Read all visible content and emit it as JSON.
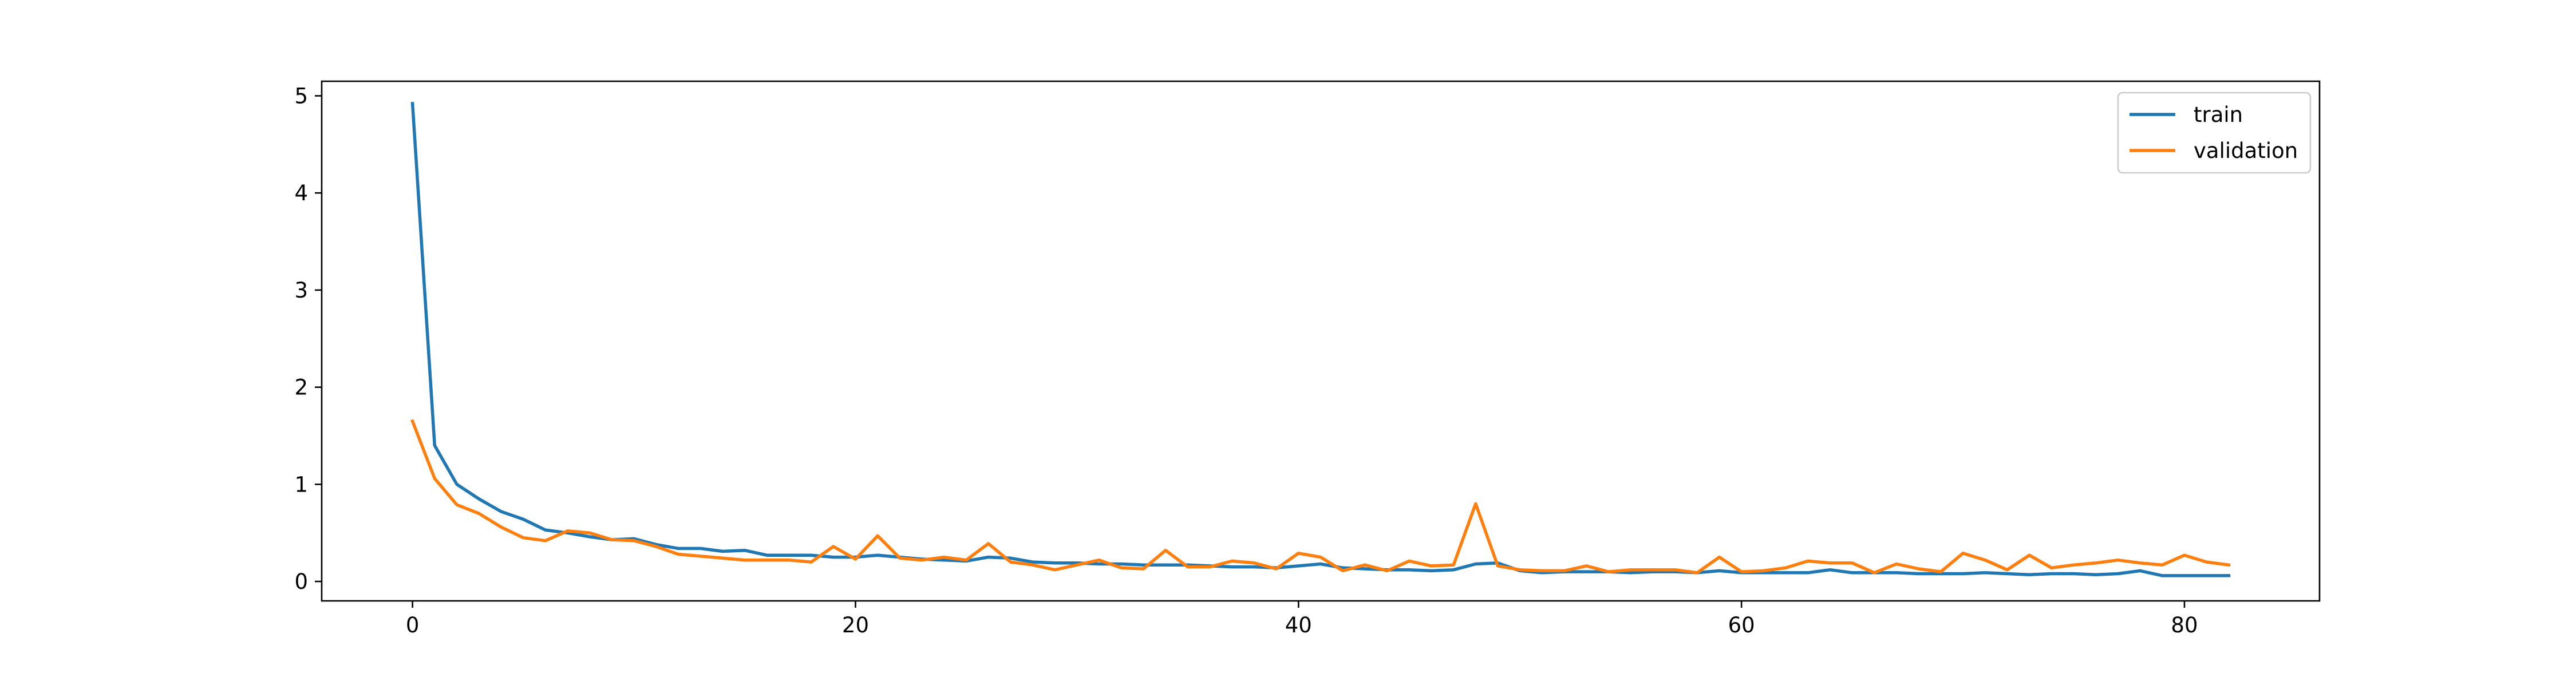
{
  "chart_data": {
    "type": "line",
    "title": "",
    "xlabel": "",
    "ylabel": "",
    "xlim": [
      -4.1,
      86.1
    ],
    "ylim": [
      -0.2,
      5.15
    ],
    "xticks": [
      0,
      20,
      40,
      60,
      80
    ],
    "yticks": [
      0,
      1,
      2,
      3,
      4,
      5
    ],
    "grid": false,
    "legend_position": "top-right",
    "x": [
      0,
      1,
      2,
      3,
      4,
      5,
      6,
      7,
      8,
      9,
      10,
      11,
      12,
      13,
      14,
      15,
      16,
      17,
      18,
      19,
      20,
      21,
      22,
      23,
      24,
      25,
      26,
      27,
      28,
      29,
      30,
      31,
      32,
      33,
      34,
      35,
      36,
      37,
      38,
      39,
      40,
      41,
      42,
      43,
      44,
      45,
      46,
      47,
      48,
      49,
      50,
      51,
      52,
      53,
      54,
      55,
      56,
      57,
      58,
      59,
      60,
      61,
      62,
      63,
      64,
      65,
      66,
      67,
      68,
      69,
      70,
      71,
      72,
      73,
      74,
      75,
      76,
      77,
      78,
      79,
      80,
      81,
      82
    ],
    "series": [
      {
        "name": "train",
        "color": "#1f77b4",
        "values": [
          4.92,
          1.4,
          1.0,
          0.85,
          0.72,
          0.64,
          0.53,
          0.5,
          0.46,
          0.43,
          0.44,
          0.38,
          0.34,
          0.34,
          0.31,
          0.32,
          0.27,
          0.27,
          0.27,
          0.25,
          0.25,
          0.27,
          0.25,
          0.23,
          0.22,
          0.21,
          0.25,
          0.24,
          0.2,
          0.19,
          0.19,
          0.18,
          0.18,
          0.17,
          0.17,
          0.17,
          0.16,
          0.15,
          0.15,
          0.14,
          0.16,
          0.18,
          0.14,
          0.13,
          0.12,
          0.12,
          0.11,
          0.12,
          0.18,
          0.19,
          0.11,
          0.09,
          0.1,
          0.1,
          0.1,
          0.09,
          0.1,
          0.1,
          0.09,
          0.11,
          0.09,
          0.09,
          0.09,
          0.09,
          0.12,
          0.09,
          0.09,
          0.09,
          0.08,
          0.08,
          0.08,
          0.09,
          0.08,
          0.07,
          0.08,
          0.08,
          0.07,
          0.08,
          0.11,
          0.06,
          0.06,
          0.06,
          0.06
        ]
      },
      {
        "name": "validation",
        "color": "#ff7f0e",
        "values": [
          1.65,
          1.06,
          0.79,
          0.7,
          0.56,
          0.45,
          0.42,
          0.52,
          0.5,
          0.43,
          0.42,
          0.36,
          0.28,
          0.26,
          0.24,
          0.22,
          0.22,
          0.22,
          0.2,
          0.36,
          0.23,
          0.47,
          0.24,
          0.22,
          0.25,
          0.22,
          0.39,
          0.2,
          0.17,
          0.12,
          0.17,
          0.22,
          0.14,
          0.13,
          0.32,
          0.15,
          0.15,
          0.21,
          0.19,
          0.13,
          0.29,
          0.25,
          0.11,
          0.17,
          0.11,
          0.21,
          0.16,
          0.17,
          0.8,
          0.16,
          0.12,
          0.11,
          0.11,
          0.16,
          0.1,
          0.12,
          0.12,
          0.12,
          0.09,
          0.25,
          0.1,
          0.11,
          0.14,
          0.21,
          0.19,
          0.19,
          0.09,
          0.18,
          0.13,
          0.1,
          0.29,
          0.22,
          0.12,
          0.27,
          0.14,
          0.17,
          0.19,
          0.22,
          0.19,
          0.17,
          0.27,
          0.2,
          0.17
        ]
      }
    ]
  }
}
